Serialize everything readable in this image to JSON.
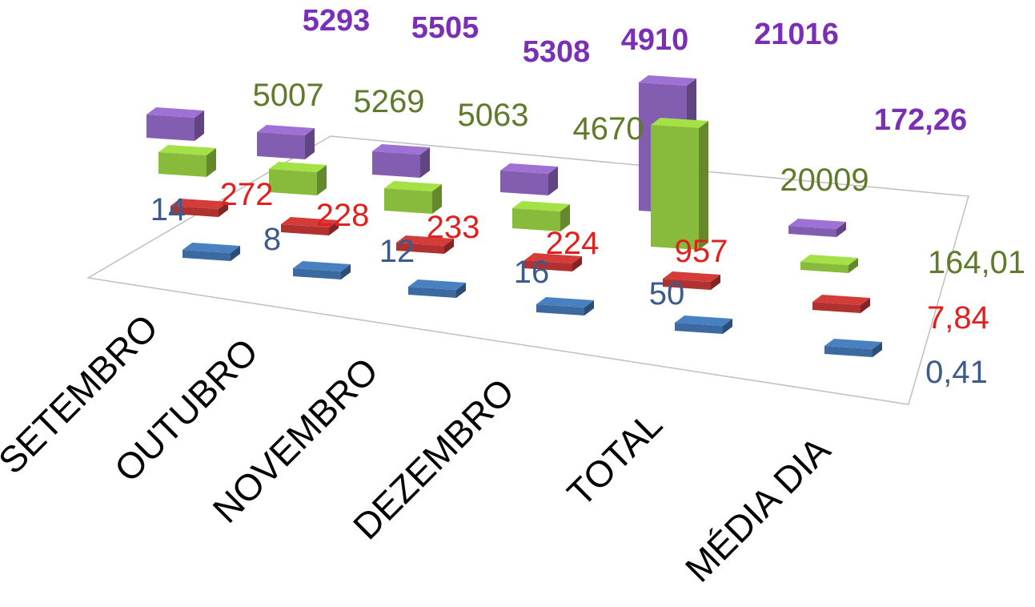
{
  "chart_data": {
    "type": "bar",
    "categories": [
      "SETEMBRO",
      "OUTUBRO",
      "NOVEMBRO",
      "DEZEMBRO",
      "TOTAL",
      "MÉDIA DIA"
    ],
    "series": [
      {
        "values": [
          14,
          8,
          12,
          16,
          50,
          0.41
        ],
        "labels": [
          "14",
          "8",
          "12",
          "16",
          "50",
          "0,41"
        ],
        "color": "#3f6fa8"
      },
      {
        "values": [
          272,
          228,
          233,
          224,
          957,
          7.84
        ],
        "labels": [
          "272",
          "228",
          "233",
          "224",
          "957",
          "7,84"
        ],
        "color": "#b83432"
      },
      {
        "values": [
          5007,
          5269,
          5063,
          4670,
          20009,
          164.01
        ],
        "labels": [
          "5007",
          "5269",
          "5063",
          "4670",
          "20009",
          "164,01"
        ],
        "color": "#8fc43e"
      },
      {
        "values": [
          5293,
          5505,
          5308,
          4910,
          21016,
          172.26
        ],
        "labels": [
          "5293",
          "5505",
          "5308",
          "4910",
          "21016",
          "172,26"
        ],
        "color": "#8a62b8"
      }
    ],
    "label_colors": [
      "#3d5a8c",
      "#e01f1f",
      "#5e7a2a",
      "#7b2fb5"
    ],
    "chart_style": "3d-column",
    "legend": "none",
    "grid": false,
    "ylim": [
      0,
      21016
    ]
  }
}
